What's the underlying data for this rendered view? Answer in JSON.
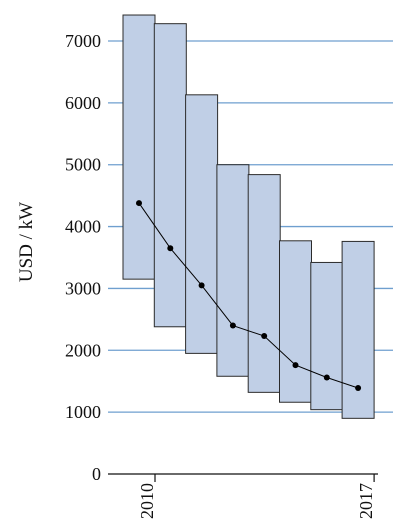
{
  "chart_data": {
    "type": "bar",
    "title": "",
    "xlabel": "",
    "ylabel": "USD / kW",
    "ylim": [
      0,
      7500
    ],
    "yticks": [
      0,
      1000,
      2000,
      3000,
      4000,
      5000,
      6000,
      7000
    ],
    "grid": true,
    "x_tick_labels": [
      {
        "x": 2010,
        "label": "2010"
      },
      {
        "x": 2017,
        "label": "2017"
      }
    ],
    "colors": {
      "box_fill": "#c0cfe6",
      "box_stroke": "#2b2b2b",
      "grid": "#6f9fcf",
      "line": "#000000"
    },
    "range_bars": [
      {
        "x": 2010,
        "low": 3150,
        "high": 7420
      },
      {
        "x": 2011,
        "low": 2380,
        "high": 7280
      },
      {
        "x": 2012,
        "low": 1950,
        "high": 6130
      },
      {
        "x": 2013,
        "low": 1580,
        "high": 5000
      },
      {
        "x": 2014,
        "low": 1320,
        "high": 4840
      },
      {
        "x": 2015,
        "low": 1160,
        "high": 3770
      },
      {
        "x": 2016,
        "low": 1040,
        "high": 3420
      },
      {
        "x": 2017,
        "low": 900,
        "high": 3760
      }
    ],
    "series": [
      {
        "x": [
          2010,
          2011,
          2012,
          2013,
          2014,
          2015,
          2016,
          2017
        ],
        "values": [
          4380,
          3650,
          3050,
          2400,
          2230,
          1760,
          1560,
          1390
        ]
      }
    ]
  }
}
